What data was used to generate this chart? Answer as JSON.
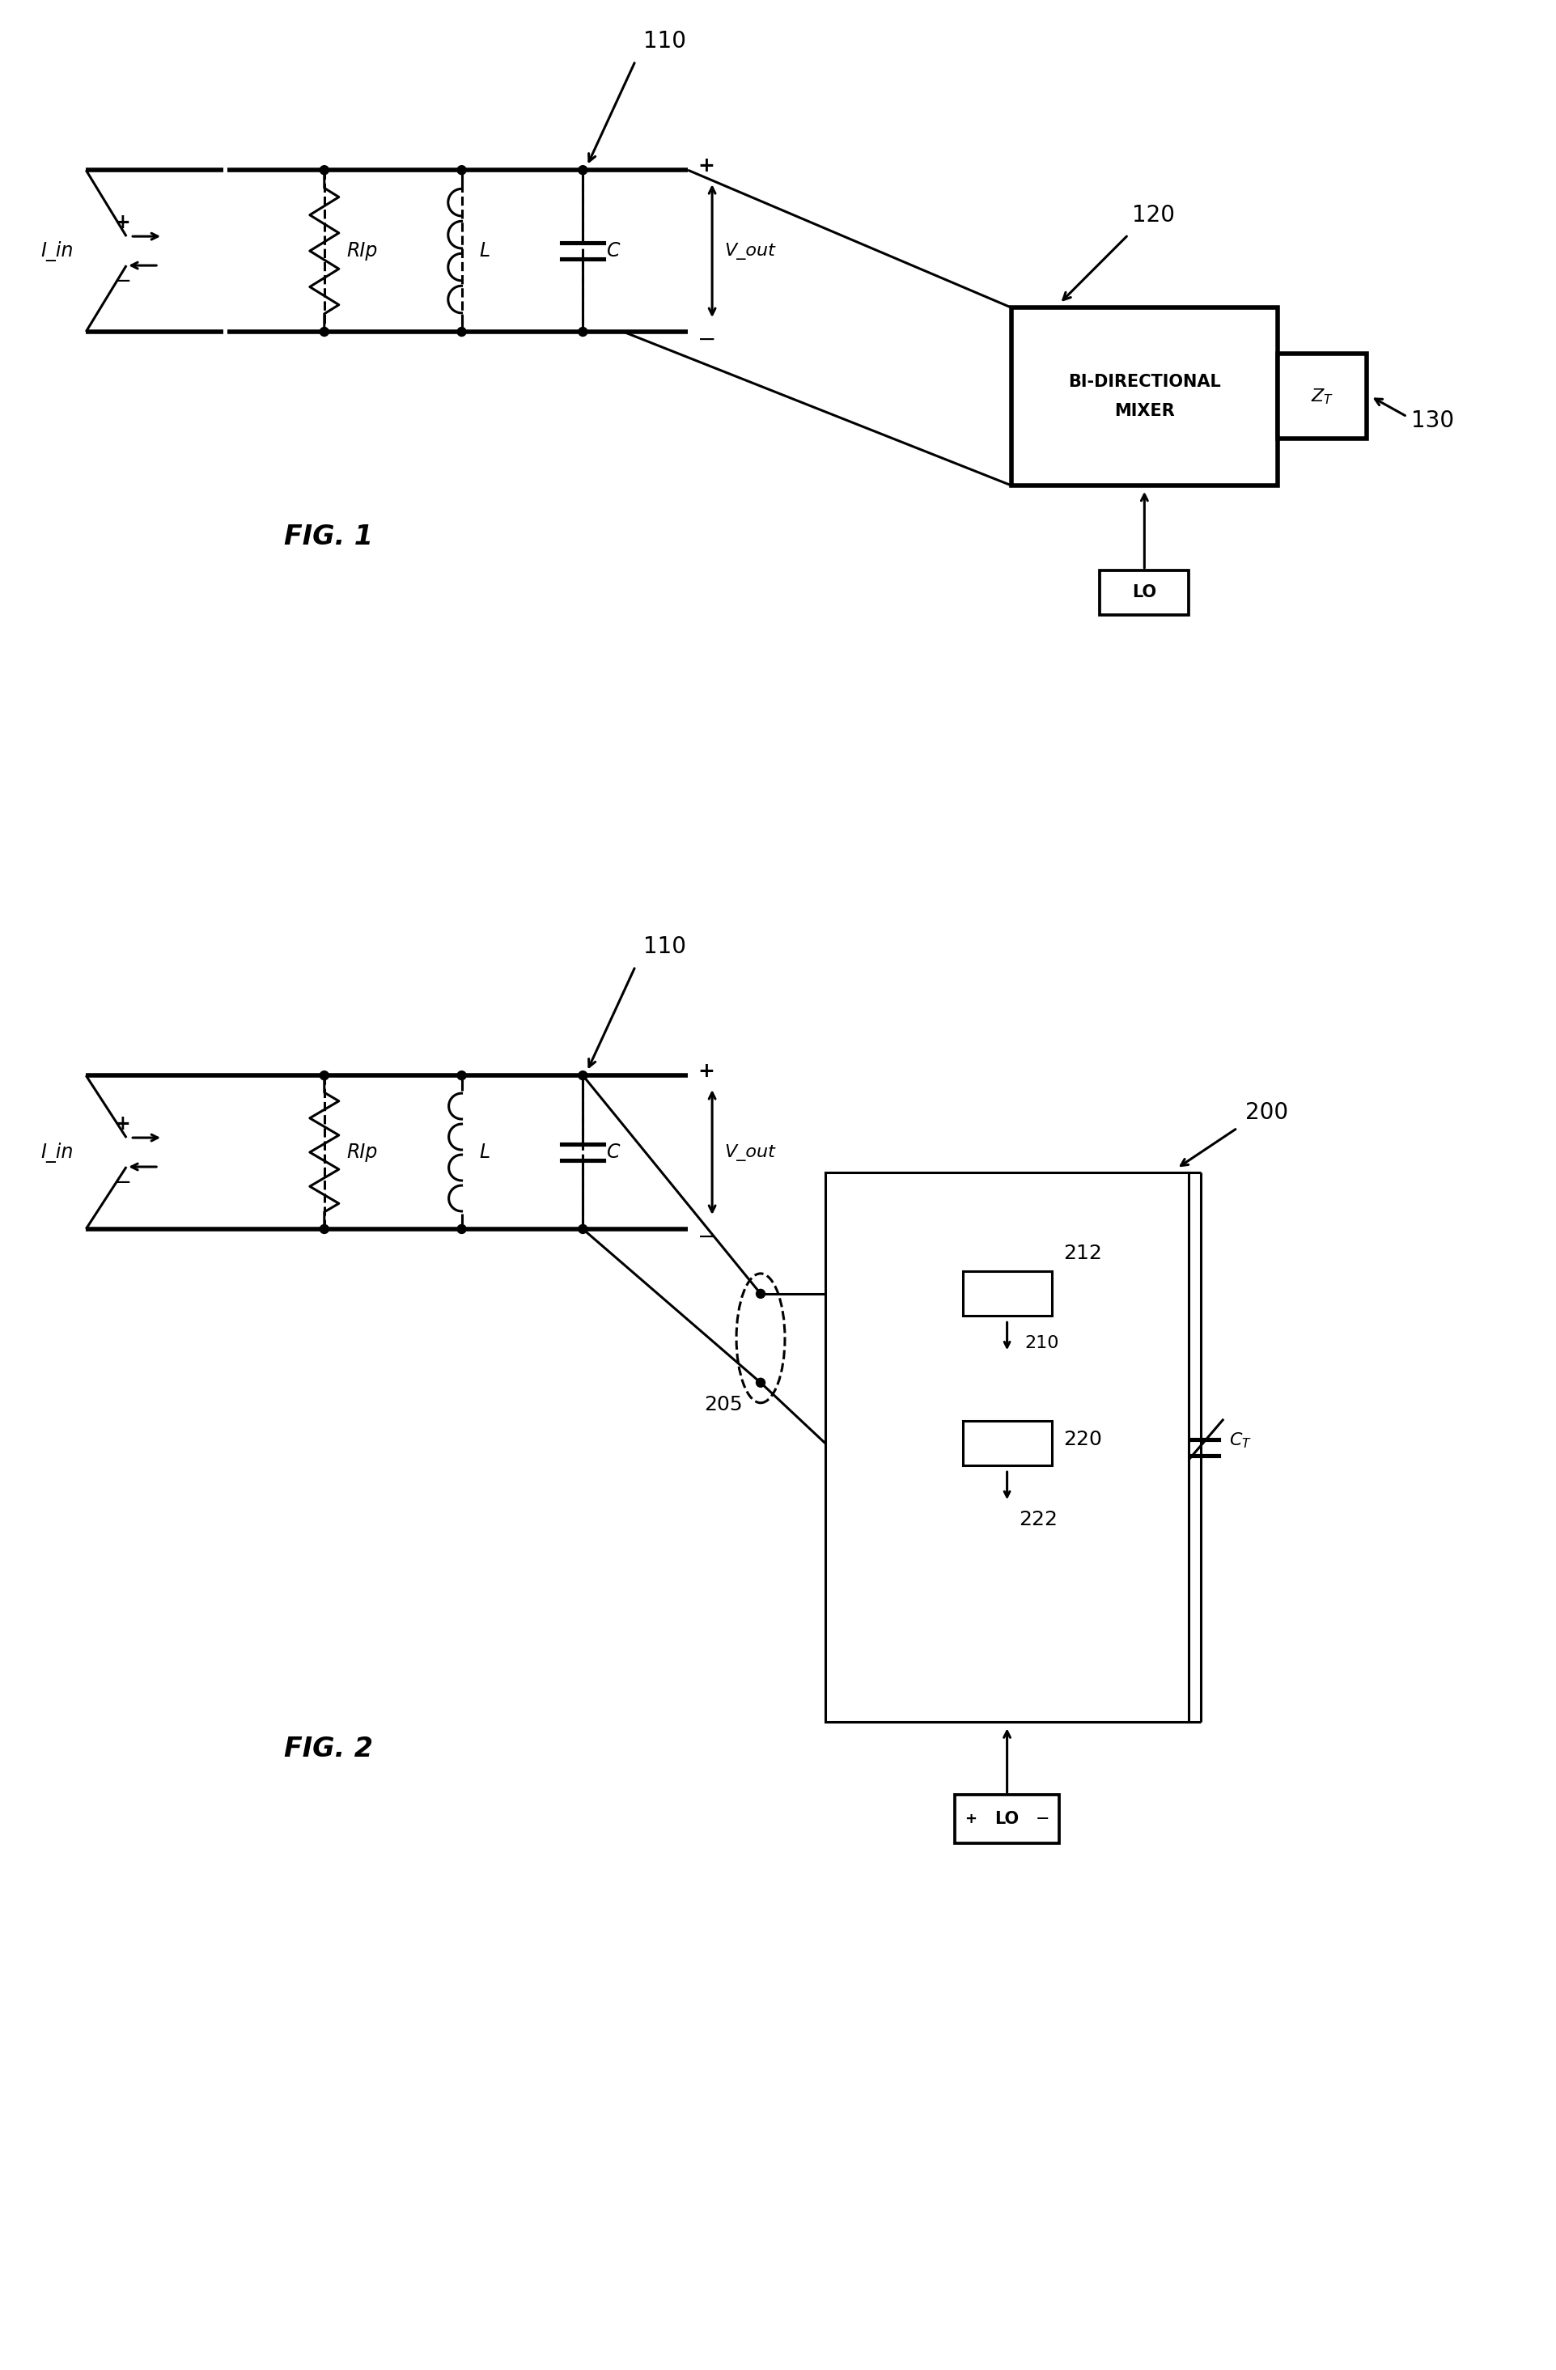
{
  "bg_color": "#ffffff",
  "lw": 2.2,
  "tlw": 4.0,
  "fig_w": 19.23,
  "fig_h": 29.29,
  "fig1_label": "FIG. 1",
  "fig2_label": "FIG. 2",
  "label_110": "110",
  "label_120": "120",
  "label_130": "130",
  "label_200": "200",
  "label_205": "205",
  "label_210": "210",
  "label_212": "212",
  "label_220": "220",
  "label_222": "222",
  "label_RIp": "RIp",
  "label_L": "L",
  "label_C": "C",
  "label_Vout": "V_out",
  "label_Iin": "I_in",
  "label_LO": "LO",
  "label_ZT": "Z_T",
  "label_MIXER": "BI-DIRECTIONAL\nMIXER",
  "label_CT": "C_T"
}
